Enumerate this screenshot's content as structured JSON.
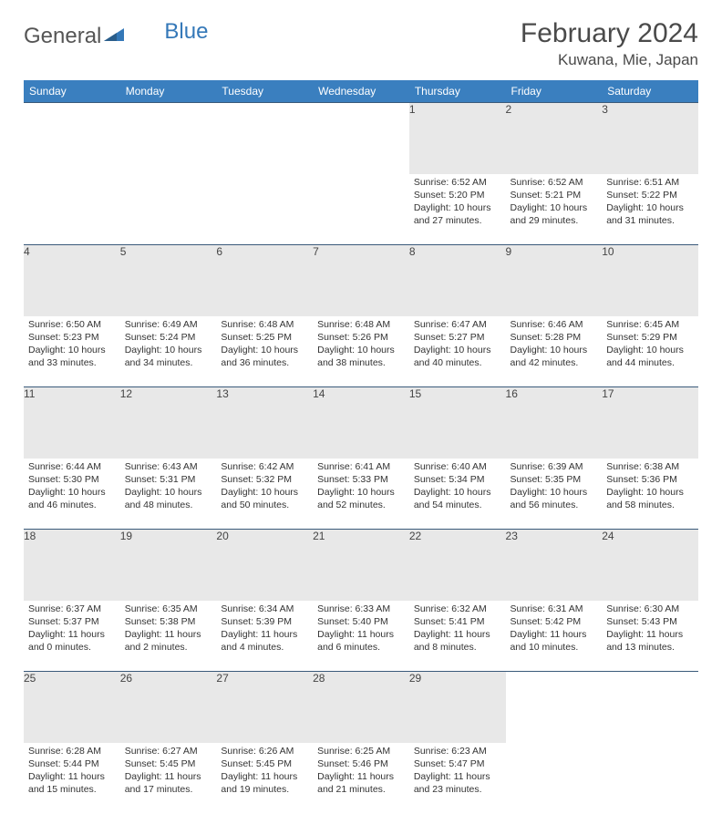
{
  "brand": {
    "part1": "General",
    "part2": "Blue"
  },
  "title": "February 2024",
  "location": "Kuwana, Mie, Japan",
  "colors": {
    "header_bg": "#3a7fbf",
    "header_text": "#ffffff",
    "daynum_bg": "#e8e8e8",
    "rule": "#3a5a7a",
    "text": "#333333",
    "brand_blue": "#3478b8"
  },
  "weekdays": [
    "Sunday",
    "Monday",
    "Tuesday",
    "Wednesday",
    "Thursday",
    "Friday",
    "Saturday"
  ],
  "weeks": [
    [
      null,
      null,
      null,
      null,
      {
        "d": "1",
        "sr": "Sunrise: 6:52 AM",
        "ss": "Sunset: 5:20 PM",
        "dl1": "Daylight: 10 hours",
        "dl2": "and 27 minutes."
      },
      {
        "d": "2",
        "sr": "Sunrise: 6:52 AM",
        "ss": "Sunset: 5:21 PM",
        "dl1": "Daylight: 10 hours",
        "dl2": "and 29 minutes."
      },
      {
        "d": "3",
        "sr": "Sunrise: 6:51 AM",
        "ss": "Sunset: 5:22 PM",
        "dl1": "Daylight: 10 hours",
        "dl2": "and 31 minutes."
      }
    ],
    [
      {
        "d": "4",
        "sr": "Sunrise: 6:50 AM",
        "ss": "Sunset: 5:23 PM",
        "dl1": "Daylight: 10 hours",
        "dl2": "and 33 minutes."
      },
      {
        "d": "5",
        "sr": "Sunrise: 6:49 AM",
        "ss": "Sunset: 5:24 PM",
        "dl1": "Daylight: 10 hours",
        "dl2": "and 34 minutes."
      },
      {
        "d": "6",
        "sr": "Sunrise: 6:48 AM",
        "ss": "Sunset: 5:25 PM",
        "dl1": "Daylight: 10 hours",
        "dl2": "and 36 minutes."
      },
      {
        "d": "7",
        "sr": "Sunrise: 6:48 AM",
        "ss": "Sunset: 5:26 PM",
        "dl1": "Daylight: 10 hours",
        "dl2": "and 38 minutes."
      },
      {
        "d": "8",
        "sr": "Sunrise: 6:47 AM",
        "ss": "Sunset: 5:27 PM",
        "dl1": "Daylight: 10 hours",
        "dl2": "and 40 minutes."
      },
      {
        "d": "9",
        "sr": "Sunrise: 6:46 AM",
        "ss": "Sunset: 5:28 PM",
        "dl1": "Daylight: 10 hours",
        "dl2": "and 42 minutes."
      },
      {
        "d": "10",
        "sr": "Sunrise: 6:45 AM",
        "ss": "Sunset: 5:29 PM",
        "dl1": "Daylight: 10 hours",
        "dl2": "and 44 minutes."
      }
    ],
    [
      {
        "d": "11",
        "sr": "Sunrise: 6:44 AM",
        "ss": "Sunset: 5:30 PM",
        "dl1": "Daylight: 10 hours",
        "dl2": "and 46 minutes."
      },
      {
        "d": "12",
        "sr": "Sunrise: 6:43 AM",
        "ss": "Sunset: 5:31 PM",
        "dl1": "Daylight: 10 hours",
        "dl2": "and 48 minutes."
      },
      {
        "d": "13",
        "sr": "Sunrise: 6:42 AM",
        "ss": "Sunset: 5:32 PM",
        "dl1": "Daylight: 10 hours",
        "dl2": "and 50 minutes."
      },
      {
        "d": "14",
        "sr": "Sunrise: 6:41 AM",
        "ss": "Sunset: 5:33 PM",
        "dl1": "Daylight: 10 hours",
        "dl2": "and 52 minutes."
      },
      {
        "d": "15",
        "sr": "Sunrise: 6:40 AM",
        "ss": "Sunset: 5:34 PM",
        "dl1": "Daylight: 10 hours",
        "dl2": "and 54 minutes."
      },
      {
        "d": "16",
        "sr": "Sunrise: 6:39 AM",
        "ss": "Sunset: 5:35 PM",
        "dl1": "Daylight: 10 hours",
        "dl2": "and 56 minutes."
      },
      {
        "d": "17",
        "sr": "Sunrise: 6:38 AM",
        "ss": "Sunset: 5:36 PM",
        "dl1": "Daylight: 10 hours",
        "dl2": "and 58 minutes."
      }
    ],
    [
      {
        "d": "18",
        "sr": "Sunrise: 6:37 AM",
        "ss": "Sunset: 5:37 PM",
        "dl1": "Daylight: 11 hours",
        "dl2": "and 0 minutes."
      },
      {
        "d": "19",
        "sr": "Sunrise: 6:35 AM",
        "ss": "Sunset: 5:38 PM",
        "dl1": "Daylight: 11 hours",
        "dl2": "and 2 minutes."
      },
      {
        "d": "20",
        "sr": "Sunrise: 6:34 AM",
        "ss": "Sunset: 5:39 PM",
        "dl1": "Daylight: 11 hours",
        "dl2": "and 4 minutes."
      },
      {
        "d": "21",
        "sr": "Sunrise: 6:33 AM",
        "ss": "Sunset: 5:40 PM",
        "dl1": "Daylight: 11 hours",
        "dl2": "and 6 minutes."
      },
      {
        "d": "22",
        "sr": "Sunrise: 6:32 AM",
        "ss": "Sunset: 5:41 PM",
        "dl1": "Daylight: 11 hours",
        "dl2": "and 8 minutes."
      },
      {
        "d": "23",
        "sr": "Sunrise: 6:31 AM",
        "ss": "Sunset: 5:42 PM",
        "dl1": "Daylight: 11 hours",
        "dl2": "and 10 minutes."
      },
      {
        "d": "24",
        "sr": "Sunrise: 6:30 AM",
        "ss": "Sunset: 5:43 PM",
        "dl1": "Daylight: 11 hours",
        "dl2": "and 13 minutes."
      }
    ],
    [
      {
        "d": "25",
        "sr": "Sunrise: 6:28 AM",
        "ss": "Sunset: 5:44 PM",
        "dl1": "Daylight: 11 hours",
        "dl2": "and 15 minutes."
      },
      {
        "d": "26",
        "sr": "Sunrise: 6:27 AM",
        "ss": "Sunset: 5:45 PM",
        "dl1": "Daylight: 11 hours",
        "dl2": "and 17 minutes."
      },
      {
        "d": "27",
        "sr": "Sunrise: 6:26 AM",
        "ss": "Sunset: 5:45 PM",
        "dl1": "Daylight: 11 hours",
        "dl2": "and 19 minutes."
      },
      {
        "d": "28",
        "sr": "Sunrise: 6:25 AM",
        "ss": "Sunset: 5:46 PM",
        "dl1": "Daylight: 11 hours",
        "dl2": "and 21 minutes."
      },
      {
        "d": "29",
        "sr": "Sunrise: 6:23 AM",
        "ss": "Sunset: 5:47 PM",
        "dl1": "Daylight: 11 hours",
        "dl2": "and 23 minutes."
      },
      null,
      null
    ]
  ]
}
